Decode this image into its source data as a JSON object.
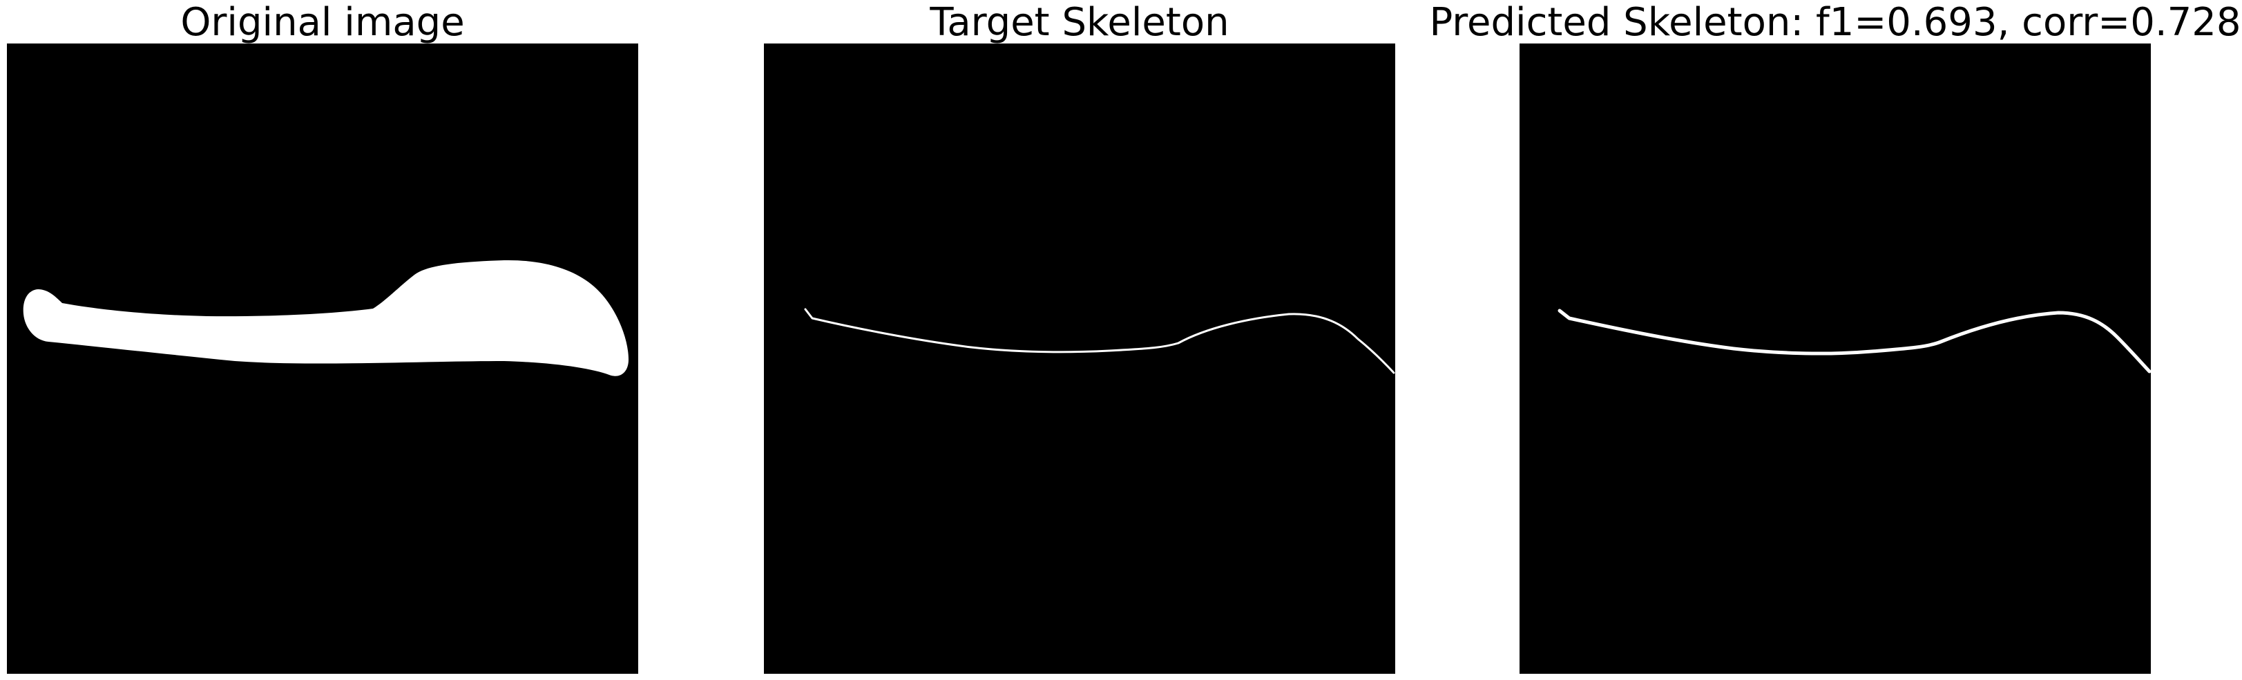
{
  "figure": {
    "background_color": "#ffffff",
    "panels": [
      {
        "title": "Original image",
        "content": "binary-mask",
        "foreground_color": "#ffffff",
        "background_color": "#000000"
      },
      {
        "title": "Target Skeleton",
        "content": "skeleton-line",
        "foreground_color": "#ffffff",
        "background_color": "#000000"
      },
      {
        "title": "Predicted Skeleton: f1=0.693, corr=0.728",
        "content": "skeleton-line",
        "foreground_color": "#ffffff",
        "background_color": "#000000"
      }
    ]
  }
}
